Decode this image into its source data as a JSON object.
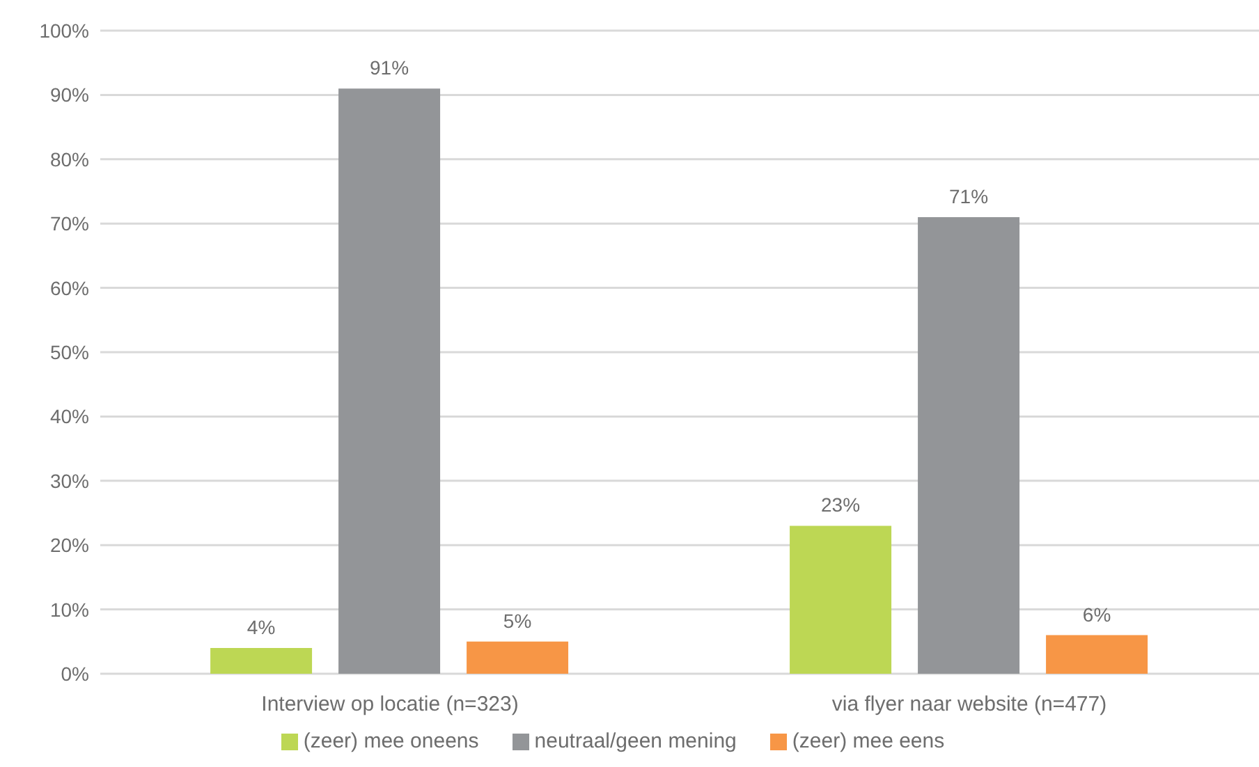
{
  "chart_data": {
    "type": "bar",
    "categories": [
      "Interview op locatie (n=323)",
      "via flyer naar website (n=477)"
    ],
    "series": [
      {
        "name": "(zeer) mee oneens",
        "color": "#bdd754",
        "values": [
          4,
          23
        ],
        "value_labels": [
          "4%",
          "23%"
        ]
      },
      {
        "name": "neutraal/geen mening",
        "color": "#939598",
        "values": [
          91,
          71
        ],
        "value_labels": [
          "91%",
          "71%"
        ]
      },
      {
        "name": "(zeer) mee eens",
        "color": "#f79646",
        "values": [
          5,
          6
        ],
        "value_labels": [
          "5%",
          "6%"
        ]
      }
    ],
    "ylim": [
      0,
      100
    ],
    "yticks": [
      {
        "value": 0,
        "label": "0%"
      },
      {
        "value": 10,
        "label": "10%"
      },
      {
        "value": 20,
        "label": "20%"
      },
      {
        "value": 30,
        "label": "30%"
      },
      {
        "value": 40,
        "label": "40%"
      },
      {
        "value": 50,
        "label": "50%"
      },
      {
        "value": 60,
        "label": "60%"
      },
      {
        "value": 70,
        "label": "70%"
      },
      {
        "value": 80,
        "label": "80%"
      },
      {
        "value": 90,
        "label": "90%"
      },
      {
        "value": 100,
        "label": "100%"
      }
    ],
    "grid": "y",
    "legend": "bottom"
  }
}
